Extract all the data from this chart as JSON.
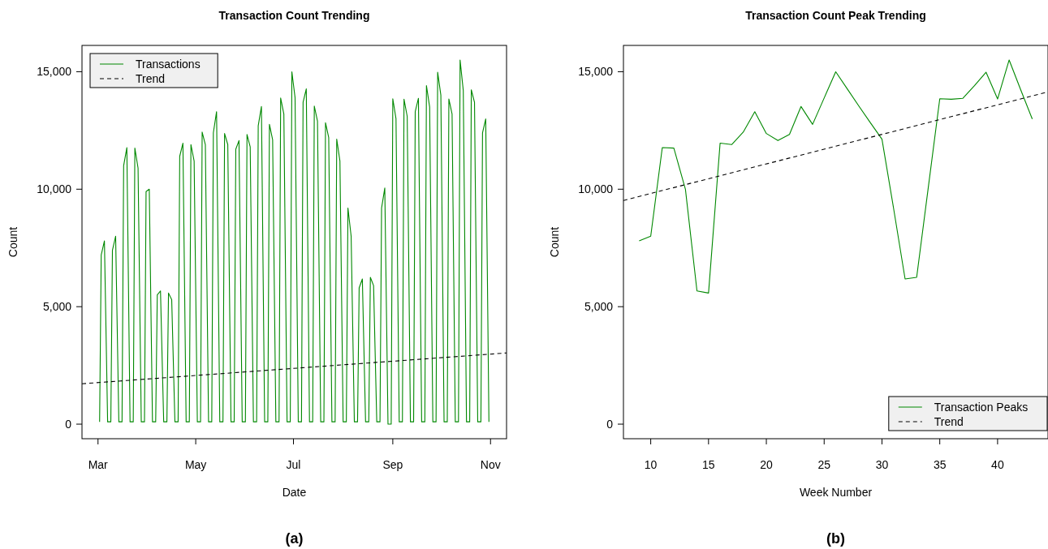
{
  "chart_data": [
    {
      "type": "line",
      "title": "Transaction Count Trending",
      "xlabel": "Date",
      "ylabel": "Count",
      "xlim": [
        "--02-20",
        "--11-11"
      ],
      "ylim": [
        -620,
        16120
      ],
      "xticks": [
        {
          "value": "--03-01",
          "label": "Mar"
        },
        {
          "value": "--05-01",
          "label": "May"
        },
        {
          "value": "--07-01",
          "label": "Jul"
        },
        {
          "value": "--09-01",
          "label": "Sep"
        },
        {
          "value": "--11-01",
          "label": "Nov"
        }
      ],
      "yticks": [
        0,
        {
          "value": 5000,
          "label": "5,000"
        },
        {
          "value": 10000,
          "label": "10,000"
        },
        {
          "value": 15000,
          "label": "15,000"
        }
      ],
      "legend": "top left",
      "annotations": [
        "(a)"
      ],
      "series": [
        {
          "name": "Transactions",
          "color": "#008800",
          "line_style": "solid",
          "x": [
            "--03-02",
            "--03-03",
            "--03-05",
            "--03-07",
            "--03-09",
            "--03-10",
            "--03-12",
            "--03-14",
            "--03-16",
            "--03-17",
            "--03-19",
            "--03-21",
            "--03-23",
            "--03-24",
            "--03-26",
            "--03-28",
            "--03-30",
            "--03-31",
            "--04-02",
            "--04-04",
            "--04-06",
            "--04-07",
            "--04-09",
            "--04-11",
            "--04-13",
            "--04-14",
            "--04-16",
            "--04-18",
            "--04-20",
            "--04-21",
            "--04-23",
            "--04-25",
            "--04-27",
            "--04-28",
            "--04-30",
            "--05-02",
            "--05-04",
            "--05-05",
            "--05-07",
            "--05-09",
            "--05-11",
            "--05-12",
            "--05-14",
            "--05-16",
            "--05-18",
            "--05-19",
            "--05-21",
            "--05-23",
            "--05-25",
            "--05-26",
            "--05-28",
            "--05-30",
            "--06-01",
            "--06-02",
            "--06-04",
            "--06-06",
            "--06-08",
            "--06-09",
            "--06-11",
            "--06-13",
            "--06-15",
            "--06-16",
            "--06-18",
            "--06-20",
            "--06-22",
            "--06-23",
            "--06-25",
            "--06-27",
            "--06-29",
            "--06-30",
            "--07-02",
            "--07-04",
            "--07-06",
            "--07-07",
            "--07-09",
            "--07-11",
            "--07-13",
            "--07-14",
            "--07-16",
            "--07-18",
            "--07-20",
            "--07-21",
            "--07-23",
            "--07-25",
            "--07-27",
            "--07-28",
            "--07-30",
            "--08-01",
            "--08-03",
            "--08-04",
            "--08-06",
            "--08-08",
            "--08-10",
            "--08-11",
            "--08-13",
            "--08-15",
            "--08-17",
            "--08-18",
            "--08-20",
            "--08-22",
            "--08-24",
            "--08-25",
            "--08-27",
            "--08-29",
            "--08-31",
            "--09-01",
            "--09-03",
            "--09-05",
            "--09-07",
            "--09-08",
            "--09-10",
            "--09-12",
            "--09-14",
            "--09-15",
            "--09-17",
            "--09-19",
            "--09-21",
            "--09-22",
            "--09-24",
            "--09-26",
            "--09-28",
            "--09-29",
            "--10-01",
            "--10-03",
            "--10-05",
            "--10-06",
            "--10-08",
            "--10-10",
            "--10-12",
            "--10-13",
            "--10-15",
            "--10-17",
            "--10-19",
            "--10-20",
            "--10-22",
            "--10-24",
            "--10-26",
            "--10-27",
            "--10-29",
            "--10-31"
          ],
          "values": [
            100,
            7200,
            7800,
            100,
            100,
            7400,
            8000,
            100,
            100,
            11000,
            11770,
            100,
            100,
            11750,
            10900,
            100,
            100,
            9900,
            10000,
            100,
            100,
            5500,
            5670,
            100,
            100,
            5580,
            5300,
            100,
            100,
            11400,
            11960,
            100,
            100,
            11900,
            11200,
            100,
            100,
            12430,
            11900,
            100,
            100,
            12400,
            13300,
            100,
            100,
            12370,
            11900,
            100,
            100,
            11700,
            12070,
            100,
            100,
            12330,
            11800,
            100,
            100,
            12700,
            13520,
            100,
            100,
            12760,
            12100,
            100,
            100,
            13880,
            13200,
            100,
            100,
            15000,
            13900,
            100,
            100,
            13700,
            14270,
            100,
            100,
            13540,
            12900,
            100,
            100,
            12830,
            12200,
            100,
            100,
            12130,
            11200,
            100,
            100,
            9200,
            8000,
            100,
            100,
            5800,
            6180,
            100,
            100,
            6250,
            5900,
            100,
            100,
            9200,
            10050,
            0,
            0,
            13850,
            13000,
            100,
            100,
            13830,
            13100,
            100,
            100,
            13300,
            13870,
            100,
            100,
            14410,
            13500,
            100,
            100,
            14980,
            14000,
            100,
            100,
            13840,
            13200,
            100,
            100,
            15500,
            14200,
            100,
            100,
            14230,
            13700,
            100,
            100,
            12400,
            12990,
            100
          ]
        },
        {
          "name": "Trend",
          "color": "#000000",
          "line_style": "dashed",
          "x": [
            "--02-20",
            "--11-11"
          ],
          "values": [
            1720,
            3030
          ]
        }
      ]
    },
    {
      "type": "line",
      "title": "Transaction Count Peak Trending",
      "xlabel": "Week Number",
      "ylabel": "Count",
      "xlim": [
        7.64,
        44.36
      ],
      "ylim": [
        -620,
        16120
      ],
      "xticks": [
        10,
        15,
        20,
        25,
        30,
        35,
        40
      ],
      "yticks": [
        0,
        {
          "value": 5000,
          "label": "5,000"
        },
        {
          "value": 10000,
          "label": "10,000"
        },
        {
          "value": 15000,
          "label": "15,000"
        }
      ],
      "legend": "bottom right",
      "annotations": [
        "(b)"
      ],
      "series": [
        {
          "name": "Transaction Peaks",
          "color": "#008800",
          "line_style": "solid",
          "x": [
            9,
            10,
            11,
            12,
            13,
            14,
            15,
            16,
            17,
            18,
            19,
            20,
            21,
            22,
            23,
            24,
            25,
            26,
            27,
            28,
            29,
            30,
            31,
            32,
            33,
            34,
            35,
            36,
            37,
            38,
            39,
            40,
            41,
            42,
            43
          ],
          "values": [
            7800,
            8000,
            11770,
            11750,
            10000,
            5670,
            5580,
            11960,
            11900,
            12430,
            13300,
            12370,
            12070,
            12330,
            13520,
            12760,
            13880,
            15000,
            14270,
            13540,
            12830,
            12130,
            9200,
            6180,
            6250,
            10050,
            13850,
            13830,
            13870,
            14410,
            14980,
            13840,
            15500,
            14230,
            12990
          ]
        },
        {
          "name": "Trend",
          "color": "#000000",
          "line_style": "dashed",
          "x": [
            7.64,
            44.36
          ],
          "values": [
            9520,
            14140
          ]
        }
      ]
    }
  ]
}
